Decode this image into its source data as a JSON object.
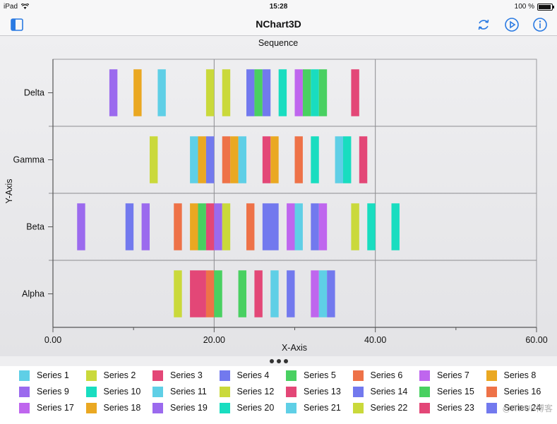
{
  "status_bar": {
    "device": "iPad",
    "time": "15:28",
    "battery": "100 %"
  },
  "nav": {
    "title": "NChart3D",
    "icons": [
      "sidebar-toggle-icon",
      "refresh-icon",
      "play-icon",
      "info-icon"
    ]
  },
  "colors": {
    "accent": "#2a7ae2",
    "palette": [
      "#5fcfe6",
      "#cad93b",
      "#e34777",
      "#7279ee",
      "#49d061",
      "#ee7248",
      "#bf66ee",
      "#eaa822",
      "#9b6aee",
      "#19ddc0"
    ]
  },
  "legend": [
    "Series 1",
    "Series 2",
    "Series 3",
    "Series 4",
    "Series 5",
    "Series 6",
    "Series 7",
    "Series 8",
    "Series 9",
    "Series 10",
    "Series 11",
    "Series 12",
    "Series 13",
    "Series 14",
    "Series 15",
    "Series 16",
    "Series 17",
    "Series 18",
    "Series 19",
    "Series 20",
    "Series 21",
    "Series 22",
    "Series 23",
    "Series 24"
  ],
  "watermark": "@ITPUB博客",
  "chart_data": {
    "type": "bar",
    "subtype": "sequence",
    "title": "Sequence",
    "xlabel": "X-Axis",
    "ylabel": "Y-Axis",
    "xlim": [
      0,
      60
    ],
    "x_ticks": [
      "0.00",
      "20.00",
      "40.00",
      "60.00"
    ],
    "categories": [
      "Delta",
      "Gamma",
      "Beta",
      "Alpha"
    ],
    "grid": true,
    "series_colors": [
      "#5fcfe6",
      "#cad93b",
      "#e34777",
      "#7279ee",
      "#49d061",
      "#ee7248",
      "#bf66ee",
      "#eaa822",
      "#9b6aee",
      "#19ddc0",
      "#5fcfe6",
      "#cad93b",
      "#e34777",
      "#7279ee",
      "#49d061",
      "#ee7248",
      "#bf66ee",
      "#eaa822",
      "#9b6aee",
      "#19ddc0",
      "#5fcfe6",
      "#cad93b",
      "#e34777",
      "#7279ee"
    ],
    "segments": [
      {
        "category": "Delta",
        "start": 7.0,
        "end": 8.0,
        "color": "#9b6aee"
      },
      {
        "category": "Delta",
        "start": 10.0,
        "end": 11.0,
        "color": "#eaa822"
      },
      {
        "category": "Delta",
        "start": 13.0,
        "end": 14.0,
        "color": "#5fcfe6"
      },
      {
        "category": "Delta",
        "start": 19.0,
        "end": 20.0,
        "color": "#cad93b"
      },
      {
        "category": "Delta",
        "start": 21.0,
        "end": 22.0,
        "color": "#cad93b"
      },
      {
        "category": "Delta",
        "start": 24.0,
        "end": 25.0,
        "color": "#7279ee"
      },
      {
        "category": "Delta",
        "start": 25.0,
        "end": 26.0,
        "color": "#49d061"
      },
      {
        "category": "Delta",
        "start": 26.0,
        "end": 27.0,
        "color": "#7279ee"
      },
      {
        "category": "Delta",
        "start": 28.0,
        "end": 29.0,
        "color": "#19ddc0"
      },
      {
        "category": "Delta",
        "start": 30.0,
        "end": 31.0,
        "color": "#bf66ee"
      },
      {
        "category": "Delta",
        "start": 31.0,
        "end": 32.0,
        "color": "#49d061"
      },
      {
        "category": "Delta",
        "start": 32.0,
        "end": 33.0,
        "color": "#19ddc0"
      },
      {
        "category": "Delta",
        "start": 33.0,
        "end": 34.0,
        "color": "#49d061"
      },
      {
        "category": "Delta",
        "start": 37.0,
        "end": 38.0,
        "color": "#e34777"
      },
      {
        "category": "Gamma",
        "start": 12.0,
        "end": 13.0,
        "color": "#cad93b"
      },
      {
        "category": "Gamma",
        "start": 17.0,
        "end": 18.0,
        "color": "#5fcfe6"
      },
      {
        "category": "Gamma",
        "start": 18.0,
        "end": 19.0,
        "color": "#eaa822"
      },
      {
        "category": "Gamma",
        "start": 19.0,
        "end": 20.0,
        "color": "#7279ee"
      },
      {
        "category": "Gamma",
        "start": 21.0,
        "end": 22.0,
        "color": "#ee7248"
      },
      {
        "category": "Gamma",
        "start": 22.0,
        "end": 23.0,
        "color": "#eaa822"
      },
      {
        "category": "Gamma",
        "start": 23.0,
        "end": 24.0,
        "color": "#5fcfe6"
      },
      {
        "category": "Gamma",
        "start": 26.0,
        "end": 27.0,
        "color": "#e34777"
      },
      {
        "category": "Gamma",
        "start": 27.0,
        "end": 28.0,
        "color": "#eaa822"
      },
      {
        "category": "Gamma",
        "start": 30.0,
        "end": 31.0,
        "color": "#ee7248"
      },
      {
        "category": "Gamma",
        "start": 32.0,
        "end": 33.0,
        "color": "#19ddc0"
      },
      {
        "category": "Gamma",
        "start": 35.0,
        "end": 36.0,
        "color": "#5fcfe6"
      },
      {
        "category": "Gamma",
        "start": 36.0,
        "end": 37.0,
        "color": "#19ddc0"
      },
      {
        "category": "Gamma",
        "start": 38.0,
        "end": 39.0,
        "color": "#e34777"
      },
      {
        "category": "Beta",
        "start": 3.0,
        "end": 4.0,
        "color": "#9b6aee"
      },
      {
        "category": "Beta",
        "start": 9.0,
        "end": 10.0,
        "color": "#7279ee"
      },
      {
        "category": "Beta",
        "start": 11.0,
        "end": 12.0,
        "color": "#9b6aee"
      },
      {
        "category": "Beta",
        "start": 15.0,
        "end": 16.0,
        "color": "#ee7248"
      },
      {
        "category": "Beta",
        "start": 17.0,
        "end": 18.0,
        "color": "#eaa822"
      },
      {
        "category": "Beta",
        "start": 18.0,
        "end": 19.0,
        "color": "#49d061"
      },
      {
        "category": "Beta",
        "start": 19.0,
        "end": 20.0,
        "color": "#e34777"
      },
      {
        "category": "Beta",
        "start": 20.0,
        "end": 21.0,
        "color": "#9b6aee"
      },
      {
        "category": "Beta",
        "start": 21.0,
        "end": 22.0,
        "color": "#cad93b"
      },
      {
        "category": "Beta",
        "start": 24.0,
        "end": 25.0,
        "color": "#ee7248"
      },
      {
        "category": "Beta",
        "start": 26.0,
        "end": 28.0,
        "color": "#7279ee"
      },
      {
        "category": "Beta",
        "start": 29.0,
        "end": 30.0,
        "color": "#bf66ee"
      },
      {
        "category": "Beta",
        "start": 30.0,
        "end": 31.0,
        "color": "#5fcfe6"
      },
      {
        "category": "Beta",
        "start": 32.0,
        "end": 33.0,
        "color": "#7279ee"
      },
      {
        "category": "Beta",
        "start": 33.0,
        "end": 34.0,
        "color": "#bf66ee"
      },
      {
        "category": "Beta",
        "start": 37.0,
        "end": 38.0,
        "color": "#cad93b"
      },
      {
        "category": "Beta",
        "start": 39.0,
        "end": 40.0,
        "color": "#19ddc0"
      },
      {
        "category": "Beta",
        "start": 42.0,
        "end": 43.0,
        "color": "#19ddc0"
      },
      {
        "category": "Alpha",
        "start": 15.0,
        "end": 16.0,
        "color": "#cad93b"
      },
      {
        "category": "Alpha",
        "start": 17.0,
        "end": 19.0,
        "color": "#e34777"
      },
      {
        "category": "Alpha",
        "start": 19.0,
        "end": 20.0,
        "color": "#ee7248"
      },
      {
        "category": "Alpha",
        "start": 20.0,
        "end": 21.0,
        "color": "#49d061"
      },
      {
        "category": "Alpha",
        "start": 23.0,
        "end": 24.0,
        "color": "#49d061"
      },
      {
        "category": "Alpha",
        "start": 25.0,
        "end": 26.0,
        "color": "#e34777"
      },
      {
        "category": "Alpha",
        "start": 27.0,
        "end": 28.0,
        "color": "#5fcfe6"
      },
      {
        "category": "Alpha",
        "start": 29.0,
        "end": 30.0,
        "color": "#7279ee"
      },
      {
        "category": "Alpha",
        "start": 32.0,
        "end": 33.0,
        "color": "#bf66ee"
      },
      {
        "category": "Alpha",
        "start": 33.0,
        "end": 34.0,
        "color": "#5fcfe6"
      },
      {
        "category": "Alpha",
        "start": 34.0,
        "end": 35.0,
        "color": "#7279ee"
      }
    ]
  }
}
